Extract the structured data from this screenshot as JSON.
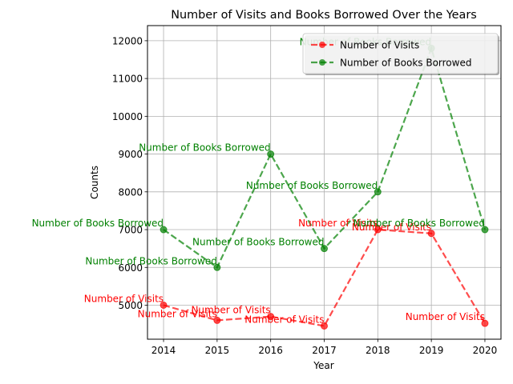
{
  "chart_data": {
    "type": "line",
    "title": "Number of Visits and Books Borrowed Over the Years",
    "xlabel": "Year",
    "ylabel": "Counts",
    "x": [
      2014,
      2015,
      2016,
      2017,
      2018,
      2019,
      2020
    ],
    "xlim": [
      2013.7,
      2020.3
    ],
    "ylim": [
      4100,
      12400
    ],
    "yticks": [
      5000,
      6000,
      7000,
      8000,
      9000,
      10000,
      11000,
      12000
    ],
    "grid": true,
    "legend_position": "top-right",
    "series": [
      {
        "name": "Number of Visits",
        "color": "#ff0000",
        "values": [
          5000,
          4600,
          4700,
          4450,
          7000,
          6900,
          4520
        ],
        "label_side": [
          "left",
          "left",
          "left",
          "left",
          "left",
          "left",
          "left"
        ]
      },
      {
        "name": "Number of Books Borrowed",
        "color": "#008000",
        "values": [
          7000,
          6000,
          9000,
          6500,
          8000,
          11800,
          7000
        ],
        "label_side": [
          "left",
          "left",
          "left",
          "left",
          "left",
          "left",
          "left"
        ]
      }
    ]
  }
}
